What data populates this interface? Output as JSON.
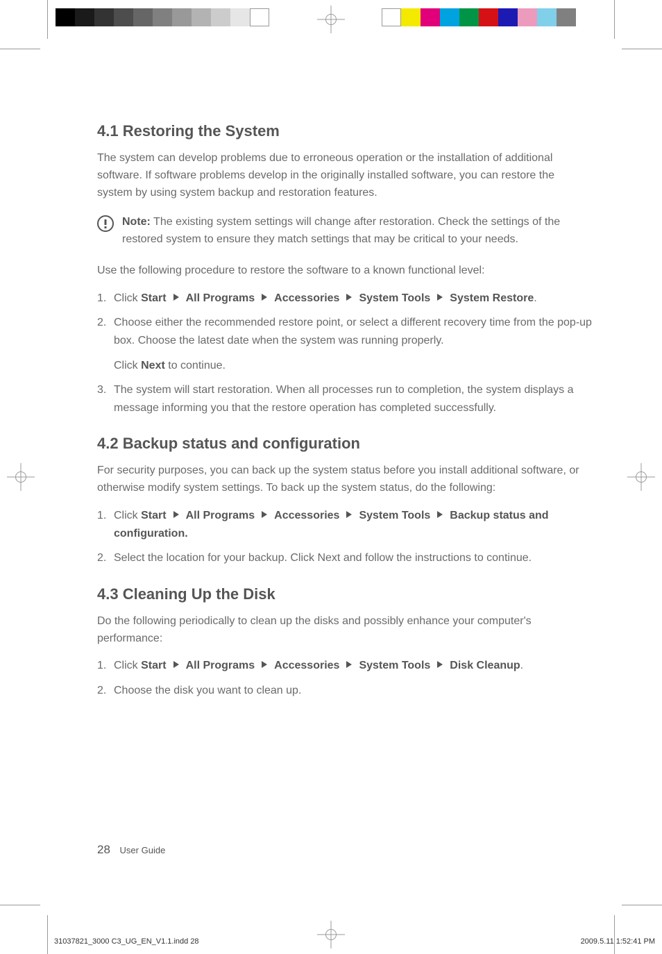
{
  "reg": {
    "gray_bar_colors": [
      "#000000",
      "#1a1a1a",
      "#333333",
      "#4d4d4d",
      "#666666",
      "#808080",
      "#999999",
      "#b3b3b3",
      "#cccccc",
      "#e6e6e6",
      "#ffffff"
    ],
    "color_bar_colors": [
      "#ffffff",
      "#f4ea00",
      "#e10079",
      "#00a3e0",
      "#009447",
      "#d51116",
      "#1d1ab3",
      "#ec9bbd",
      "#80d0ea",
      "#808080"
    ]
  },
  "section1": {
    "heading": "4.1 Restoring the System",
    "intro": "The system can develop problems due to erroneous operation or the installation of additional software. If software problems develop in the originally installed software, you can restore the system by using system backup and restoration features.",
    "note_label": "Note:",
    "note_text": " The existing system settings will change after restoration. Check the settings of the restored system to ensure they match settings that may be critical to your needs.",
    "lead": "Use the following procedure to restore the software to a known functional level:",
    "step1_pre": "Click ",
    "path": [
      "Start",
      "All Programs",
      "Accessories",
      "System Tools",
      "System Restore"
    ],
    "step1_post": ".",
    "step2_a": "Choose either the recommended restore point, or select a different recovery time from the pop-up box. Choose the latest date when the system was running properly.",
    "step2_b_pre": "Click ",
    "step2_b_bold": "Next",
    "step2_b_post": " to continue.",
    "step3": "The system will start restoration. When all processes run to completion, the system displays a message informing you that the restore operation has completed successfully."
  },
  "section2": {
    "heading": "4.2 Backup status and configuration",
    "intro": "For security purposes, you can back up the system status before you install additional software, or otherwise modify system settings. To back up the system status, do the following:",
    "step1_pre": "Click ",
    "path": [
      "Start",
      "All Programs",
      "Accessories",
      "System Tools",
      "Backup status and configuration."
    ],
    "step2": "Select the location for your backup. Click Next and follow the instructions to continue."
  },
  "section3": {
    "heading": "4.3 Cleaning Up the Disk",
    "intro": "Do the following periodically to clean up the disks and possibly enhance your computer's performance:",
    "step1_pre": "Click ",
    "path": [
      "Start",
      "All Programs",
      "Accessories",
      "System Tools",
      "Disk Cleanup"
    ],
    "step1_post": ".",
    "step2": "Choose the disk you want to clean up."
  },
  "footer": {
    "page_number": "28",
    "doc_title": "User Guide"
  },
  "slug": {
    "left": "31037821_3000 C3_UG_EN_V1.1.indd   28",
    "right": "2009.5.11   1:52:41 PM"
  }
}
